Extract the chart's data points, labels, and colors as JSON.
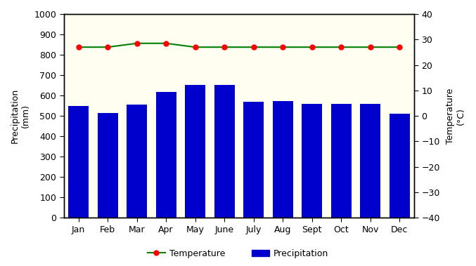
{
  "months": [
    "Jan",
    "Feb",
    "Mar",
    "Apr",
    "May",
    "June",
    "July",
    "Aug",
    "Sept",
    "Oct",
    "Nov",
    "Dec"
  ],
  "precipitation": [
    550,
    515,
    555,
    618,
    652,
    652,
    570,
    572,
    560,
    560,
    560,
    510
  ],
  "temperature": [
    27,
    27,
    28.5,
    28.5,
    27,
    27,
    27,
    27,
    27,
    27,
    27,
    27
  ],
  "bar_color": "#0000cc",
  "line_color": "#008000",
  "marker_color": "#ff0000",
  "background_color": "#fffef0",
  "precip_ylim": [
    0,
    1000
  ],
  "temp_ylim": [
    -40,
    40
  ],
  "precip_yticks": [
    0,
    100,
    200,
    300,
    400,
    500,
    600,
    700,
    800,
    900,
    1000
  ],
  "temp_yticks": [
    -40,
    -30,
    -20,
    -10,
    0,
    10,
    20,
    30,
    40
  ],
  "ylabel_left": "Precipitation\n(mm)",
  "ylabel_right": "Temperature\n(°C)",
  "legend_temp": "Temperature",
  "legend_precip": "Precipitation"
}
